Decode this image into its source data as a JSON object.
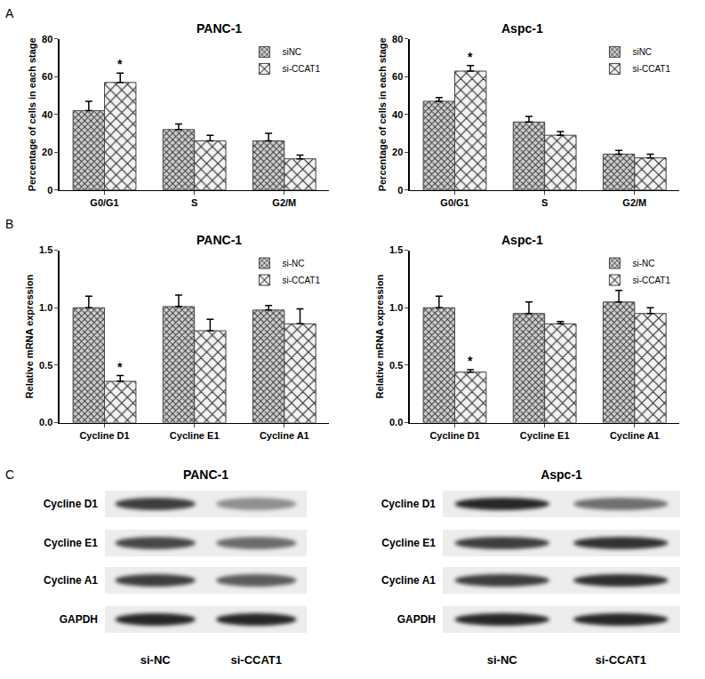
{
  "chart_data": [
    {
      "type": "bar",
      "panel": "A",
      "title": "PANC-1",
      "y_label": "Percentage of cells in each stage",
      "categories": [
        "G0/G1",
        "S",
        "G2/M"
      ],
      "series": [
        {
          "name": "siNC",
          "color": "#cfcfcf",
          "values": [
            42,
            32,
            26
          ],
          "errors": [
            5,
            3,
            4
          ]
        },
        {
          "name": "si-CCAT1",
          "color": "#f2f2f2",
          "values": [
            57,
            26,
            16.5
          ],
          "errors": [
            5,
            3,
            2
          ]
        }
      ],
      "ylim": [
        0,
        80
      ],
      "yticks": [
        0,
        20,
        40,
        60,
        80
      ],
      "grid": false,
      "legend": "upper right",
      "annotations": [
        {
          "text": "*",
          "category": "G0/G1",
          "series": "si-CCAT1"
        }
      ]
    },
    {
      "type": "bar",
      "title": "Aspc-1",
      "y_label": "Percentage of cells in each stage",
      "categories": [
        "G0/G1",
        "S",
        "G2/M"
      ],
      "series": [
        {
          "name": "siNC",
          "color": "#cfcfcf",
          "values": [
            47,
            36,
            19
          ],
          "errors": [
            2,
            3,
            2
          ]
        },
        {
          "name": "si-CCAT1",
          "color": "#f2f2f2",
          "values": [
            63,
            29,
            17
          ],
          "errors": [
            3,
            2,
            2
          ]
        }
      ],
      "ylim": [
        0,
        80
      ],
      "yticks": [
        0,
        20,
        40,
        60,
        80
      ],
      "grid": false,
      "legend": "upper right",
      "annotations": [
        {
          "text": "*",
          "category": "G0/G1",
          "series": "si-CCAT1"
        }
      ]
    },
    {
      "type": "bar",
      "panel": "B",
      "title": "PANC-1",
      "y_label": "Relative mRNA expression",
      "categories": [
        "Cycline D1",
        "Cycline E1",
        "Cycline A1"
      ],
      "series": [
        {
          "name": "si-NC",
          "color": "#cfcfcf",
          "values": [
            1.0,
            1.01,
            0.98
          ],
          "errors": [
            0.1,
            0.1,
            0.04
          ]
        },
        {
          "name": "si-CCAT1",
          "color": "#f2f2f2",
          "values": [
            0.36,
            0.8,
            0.86
          ],
          "errors": [
            0.05,
            0.1,
            0.13
          ]
        }
      ],
      "ylim": [
        0,
        1.5
      ],
      "yticks": [
        {
          "value": 0,
          "label": "0.0"
        },
        {
          "value": 0.5,
          "label": "0.5"
        },
        {
          "value": 1,
          "label": "1.0"
        },
        {
          "value": 1.5,
          "label": "1.5"
        }
      ],
      "grid": false,
      "legend": "upper right",
      "annotations": [
        {
          "text": "*",
          "category": "Cycline D1",
          "series": "si-CCAT1"
        }
      ]
    },
    {
      "type": "bar",
      "title": "Aspc-1",
      "y_label": "Relative mRNA expression",
      "categories": [
        "Cycline D1",
        "Cycline E1",
        "Cycline A1"
      ],
      "series": [
        {
          "name": "si-NC",
          "color": "#cfcfcf",
          "values": [
            1.0,
            0.95,
            1.05
          ],
          "errors": [
            0.1,
            0.1,
            0.1
          ]
        },
        {
          "name": "si-CCAT1",
          "color": "#f2f2f2",
          "values": [
            0.44,
            0.86,
            0.95
          ],
          "errors": [
            0.02,
            0.02,
            0.05
          ]
        }
      ],
      "ylim": [
        0,
        1.5
      ],
      "yticks": [
        {
          "value": 0,
          "label": "0.0"
        },
        {
          "value": 0.5,
          "label": "0.5"
        },
        {
          "value": 1,
          "label": "1.0"
        },
        {
          "value": 1.5,
          "label": "1.5"
        }
      ],
      "grid": false,
      "legend": "upper right",
      "annotations": [
        {
          "text": "*",
          "category": "Cycline D1",
          "series": "si-CCAT1"
        }
      ]
    }
  ],
  "blots": [
    {
      "panel": "C",
      "title": "PANC-1",
      "lanes": [
        "si-NC",
        "si-CCAT1"
      ],
      "bands": [
        {
          "label": "Cycline D1",
          "intensity": [
            0.85,
            0.45
          ]
        },
        {
          "label": "Cycline E1",
          "intensity": [
            0.8,
            0.62
          ]
        },
        {
          "label": "Cycline A1",
          "intensity": [
            0.85,
            0.7
          ]
        },
        {
          "label": "GAPDH",
          "intensity": [
            0.95,
            0.95
          ]
        }
      ]
    },
    {
      "title": "Aspc-1",
      "lanes": [
        "si-NC",
        "si-CCAT1"
      ],
      "bands": [
        {
          "label": "Cycline D1",
          "intensity": [
            0.95,
            0.6
          ]
        },
        {
          "label": "Cycline E1",
          "intensity": [
            0.85,
            0.9
          ]
        },
        {
          "label": "Cycline A1",
          "intensity": [
            0.85,
            0.92
          ]
        },
        {
          "label": "GAPDH",
          "intensity": [
            0.95,
            0.95
          ]
        }
      ]
    }
  ]
}
